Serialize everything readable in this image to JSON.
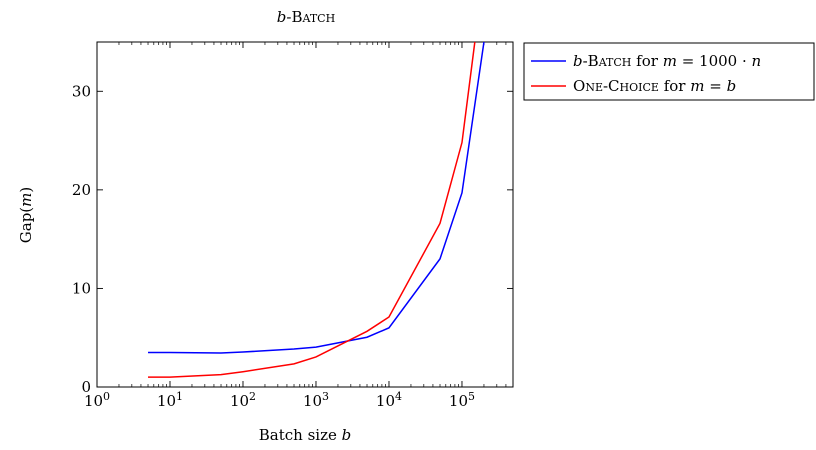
{
  "chart_data": {
    "type": "line",
    "title": "b-Batch",
    "xlabel": "Batch size b",
    "ylabel": "Gap(m)",
    "xscale": "log",
    "xlim": [
      1,
      500000
    ],
    "ylim": [
      0,
      35
    ],
    "x_ticks": [
      1,
      10,
      100,
      1000,
      10000,
      100000
    ],
    "x_tick_labels": [
      "10^0",
      "10^1",
      "10^2",
      "10^3",
      "10^4",
      "10^5"
    ],
    "y_ticks": [
      0,
      10,
      20,
      30
    ],
    "y_tick_labels": [
      "0",
      "10",
      "20",
      "30"
    ],
    "grid": false,
    "legend_position": "outside-top-right",
    "series": [
      {
        "name": "b-Batch for m = 1000 · n",
        "color": "#0000ff",
        "x": [
          5,
          10,
          50,
          100,
          500,
          1000,
          5000,
          10000,
          50000,
          100000,
          200000
        ],
        "y": [
          3.5,
          3.5,
          3.45,
          3.55,
          3.85,
          4.05,
          5.05,
          6.0,
          13.0,
          19.7,
          35.0
        ]
      },
      {
        "name": "One-Choice for m = b",
        "color": "#ff0000",
        "x": [
          5,
          10,
          50,
          100,
          500,
          1000,
          5000,
          10000,
          50000,
          100000,
          150000
        ],
        "y": [
          1.0,
          1.0,
          1.25,
          1.55,
          2.35,
          3.05,
          5.65,
          7.1,
          16.6,
          24.8,
          35.0
        ]
      }
    ]
  }
}
